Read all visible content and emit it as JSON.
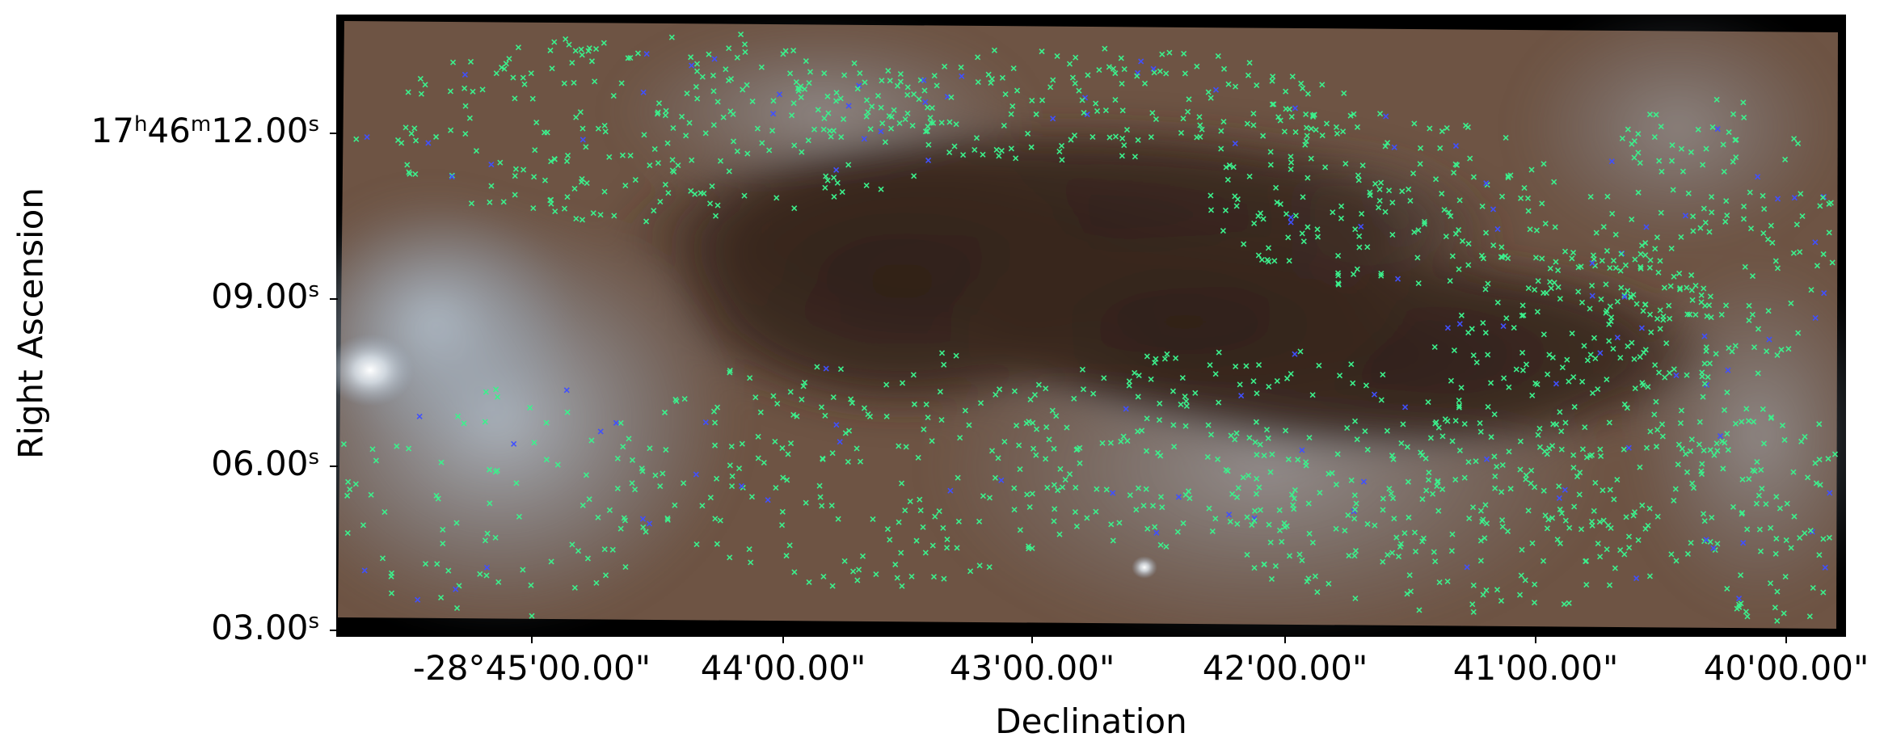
{
  "axes": {
    "xlabel": "Declination",
    "ylabel": "Right Ascension",
    "y_ticks": [
      {
        "h": "17",
        "h_sym": "h",
        "m": "46",
        "m_sym": "m",
        "s": "12.00",
        "s_sym": "s"
      },
      {
        "s": "09.00",
        "s_sym": "s"
      },
      {
        "s": "06.00",
        "s_sym": "s"
      },
      {
        "s": "03.00",
        "s_sym": "s"
      }
    ],
    "x_ticks": [
      "-28°45'00.00\"",
      "44'00.00\"",
      "43'00.00\"",
      "42'00.00\"",
      "41'00.00\"",
      "40'00.00\""
    ]
  },
  "image": {
    "description_colors": {
      "dark_lane": "#3a2820",
      "dust": "#6b4a36",
      "nebula": "#aab9c8",
      "bright_source": "#ffffff",
      "marker_primary": "#3cf08c",
      "marker_secondary": "#4050ff"
    }
  }
}
